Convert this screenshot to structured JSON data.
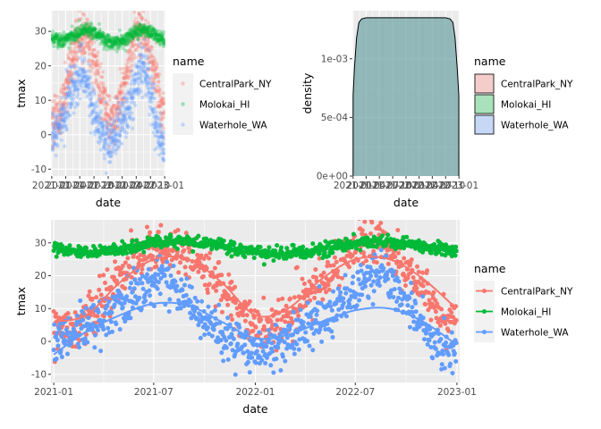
{
  "chart_data": [
    {
      "type": "scatter",
      "xlabel": "date",
      "ylabel": "tmax",
      "xlim": [
        "2020-12-27",
        "2023-01-06"
      ],
      "ylim": [
        -12,
        36
      ],
      "x_ticks": [
        {
          "date": "2021-01-01",
          "label": "2021-01"
        },
        {
          "date": "2021-04-01",
          "label": "2021-04"
        },
        {
          "date": "2021-07-01",
          "label": "2021-07"
        },
        {
          "date": "2021-10-01",
          "label": "2021-10"
        },
        {
          "date": "2022-01-01",
          "label": "2022-01"
        },
        {
          "date": "2022-04-01",
          "label": "2022-04"
        },
        {
          "date": "2022-07-01",
          "label": "2022-07"
        },
        {
          "date": "2022-10-01",
          "label": "2022-10"
        },
        {
          "date": "2023-01-01",
          "label": "2023-01"
        }
      ],
      "y_ticks": [
        -10,
        0,
        10,
        20,
        30
      ],
      "point_alpha": 0.3,
      "grid": true,
      "legend": {
        "title": "name",
        "position": "right",
        "entries": [
          {
            "label": "CentralPark_NY",
            "color": "#F8766D"
          },
          {
            "label": "Molokai_HI",
            "color": "#00BA38"
          },
          {
            "label": "Waterhole_WA",
            "color": "#619CFF"
          }
        ]
      },
      "series": [
        {
          "name": "CentralPark_NY",
          "color": "#F8766D",
          "x": [
            "2021-01-15",
            "2021-02-15",
            "2021-03-15",
            "2021-04-15",
            "2021-05-15",
            "2021-06-15",
            "2021-07-15",
            "2021-08-15",
            "2021-09-15",
            "2021-10-15",
            "2021-11-15",
            "2021-12-15",
            "2022-01-15",
            "2022-02-15",
            "2022-03-15",
            "2022-04-15",
            "2022-05-15",
            "2022-06-15",
            "2022-07-15",
            "2022-08-15",
            "2022-09-15",
            "2022-10-15",
            "2022-11-15",
            "2022-12-15"
          ],
          "y": [
            4,
            4,
            10,
            16,
            22,
            27,
            28,
            28,
            25,
            20,
            13,
            9,
            2,
            6,
            10,
            15,
            22,
            27,
            31,
            30,
            26,
            19,
            14,
            7
          ]
        },
        {
          "name": "Molokai_HI",
          "color": "#00BA38",
          "x": [
            "2021-01-15",
            "2021-02-15",
            "2021-03-15",
            "2021-04-15",
            "2021-05-15",
            "2021-06-15",
            "2021-07-15",
            "2021-08-15",
            "2021-09-15",
            "2021-10-15",
            "2021-11-15",
            "2021-12-15",
            "2022-01-15",
            "2022-02-15",
            "2022-03-15",
            "2022-04-15",
            "2022-05-15",
            "2022-06-15",
            "2022-07-15",
            "2022-08-15",
            "2022-09-15",
            "2022-10-15",
            "2022-11-15",
            "2022-12-15"
          ],
          "y": [
            28,
            27.5,
            27,
            28,
            28.5,
            29.5,
            30,
            30.5,
            30,
            29.5,
            28.5,
            27.5,
            27,
            26.5,
            27,
            27.5,
            28.5,
            29.5,
            30,
            30.5,
            30,
            29.5,
            28.5,
            27.5
          ]
        },
        {
          "name": "Waterhole_WA",
          "color": "#619CFF",
          "x": [
            "2021-01-15",
            "2021-02-15",
            "2021-03-15",
            "2021-04-15",
            "2021-05-15",
            "2021-06-15",
            "2021-07-15",
            "2021-08-15",
            "2021-09-15",
            "2021-10-15",
            "2021-11-15",
            "2021-12-15",
            "2022-01-15",
            "2022-02-15",
            "2022-03-15",
            "2022-04-15",
            "2022-05-15",
            "2022-06-15",
            "2022-07-15",
            "2022-08-15",
            "2022-09-15",
            "2022-10-15",
            "2022-11-15",
            "2022-12-15"
          ],
          "y": [
            0,
            3,
            5,
            8,
            13,
            16,
            18,
            16,
            10,
            5,
            1,
            -2,
            -3,
            0,
            2,
            5,
            8,
            13,
            17,
            21,
            16,
            7,
            1,
            -3
          ]
        }
      ]
    },
    {
      "type": "area",
      "xlabel": "date",
      "ylabel": "density",
      "xlim": [
        "2020-12-27",
        "2023-01-06"
      ],
      "ylim": [
        0,
        0.00141
      ],
      "x_ticks": [
        {
          "date": "2021-01-01",
          "label": "2021-01"
        },
        {
          "date": "2021-04-01",
          "label": "2021-04"
        },
        {
          "date": "2021-07-01",
          "label": "2021-07"
        },
        {
          "date": "2021-10-01",
          "label": "2021-10"
        },
        {
          "date": "2022-01-01",
          "label": "2022-01"
        },
        {
          "date": "2022-04-01",
          "label": "2022-04"
        },
        {
          "date": "2022-07-01",
          "label": "2022-07"
        },
        {
          "date": "2022-10-01",
          "label": "2022-10"
        },
        {
          "date": "2023-01-01",
          "label": "2023-01"
        }
      ],
      "y_ticks": [
        {
          "value": 0,
          "label": "0e+00"
        },
        {
          "value": 0.0005,
          "label": "5e-04"
        },
        {
          "value": 0.001,
          "label": "1e-03"
        }
      ],
      "fill_alpha": 0.3,
      "grid": true,
      "legend": {
        "title": "name",
        "position": "right",
        "entries": [
          {
            "label": "CentralPark_NY",
            "color": "#F8766D"
          },
          {
            "label": "Molokai_HI",
            "color": "#00BA38"
          },
          {
            "label": "Waterhole_WA",
            "color": "#619CFF"
          }
        ]
      },
      "series": [
        {
          "name": "density",
          "x": [
            "2021-01-01",
            "2021-01-10",
            "2021-01-25",
            "2021-02-10",
            "2021-03-01",
            "2021-04-01",
            "2022-10-01",
            "2022-11-01",
            "2022-11-20",
            "2022-12-05",
            "2022-12-20",
            "2022-12-31"
          ],
          "y": [
            0.00069,
            0.00092,
            0.00118,
            0.00131,
            0.00134,
            0.00135,
            0.00135,
            0.00134,
            0.00131,
            0.00118,
            0.00092,
            0.00069
          ]
        }
      ]
    },
    {
      "type": "scatter",
      "xlabel": "date",
      "ylabel": "tmax",
      "xlim": [
        "2020-12-27",
        "2023-01-06"
      ],
      "ylim": [
        -12.5,
        37
      ],
      "x_ticks": [
        {
          "date": "2021-01-01",
          "label": "2021-01"
        },
        {
          "date": "2021-07-01",
          "label": "2021-07"
        },
        {
          "date": "2022-01-01",
          "label": "2022-01"
        },
        {
          "date": "2022-07-01",
          "label": "2022-07"
        },
        {
          "date": "2023-01-01",
          "label": "2023-01"
        }
      ],
      "y_ticks": [
        -10,
        0,
        10,
        20,
        30
      ],
      "grid": true,
      "legend": {
        "title": "name",
        "position": "right",
        "entries": [
          {
            "label": "CentralPark_NY",
            "color": "#F8766D"
          },
          {
            "label": "Molokai_HI",
            "color": "#00BA38"
          },
          {
            "label": "Waterhole_WA",
            "color": "#619CFF"
          }
        ]
      },
      "series": [
        {
          "name": "CentralPark_NY",
          "color": "#F8766D",
          "x": [
            "2021-01-15",
            "2021-02-15",
            "2021-03-15",
            "2021-04-15",
            "2021-05-15",
            "2021-06-15",
            "2021-07-15",
            "2021-08-15",
            "2021-09-15",
            "2021-10-15",
            "2021-11-15",
            "2021-12-15",
            "2022-01-15",
            "2022-02-15",
            "2022-03-15",
            "2022-04-15",
            "2022-05-15",
            "2022-06-15",
            "2022-07-15",
            "2022-08-15",
            "2022-09-15",
            "2022-10-15",
            "2022-11-15",
            "2022-12-15"
          ],
          "y": [
            4,
            4,
            10,
            16,
            22,
            27,
            28,
            28,
            25,
            20,
            13,
            9,
            2,
            6,
            10,
            15,
            22,
            27,
            31,
            30,
            26,
            19,
            14,
            7
          ],
          "smooth_x": [
            "2021-01-01",
            "2021-03-01",
            "2021-05-01",
            "2021-07-01",
            "2021-09-01",
            "2021-11-01",
            "2022-01-01",
            "2022-03-01",
            "2022-05-01",
            "2022-07-01",
            "2022-09-01",
            "2022-11-01",
            "2022-12-31"
          ],
          "smooth_y": [
            6,
            8,
            18,
            25,
            25,
            18,
            8,
            10,
            19,
            25,
            25,
            19,
            10
          ]
        },
        {
          "name": "Molokai_HI",
          "color": "#00BA38",
          "x": [
            "2021-01-15",
            "2021-02-15",
            "2021-03-15",
            "2021-04-15",
            "2021-05-15",
            "2021-06-15",
            "2021-07-15",
            "2021-08-15",
            "2021-09-15",
            "2021-10-15",
            "2021-11-15",
            "2021-12-15",
            "2022-01-15",
            "2022-02-15",
            "2022-03-15",
            "2022-04-15",
            "2022-05-15",
            "2022-06-15",
            "2022-07-15",
            "2022-08-15",
            "2022-09-15",
            "2022-10-15",
            "2022-11-15",
            "2022-12-15"
          ],
          "y": [
            28,
            27.5,
            27,
            28,
            28.5,
            29.5,
            30,
            30.5,
            30,
            29.5,
            28.5,
            27.5,
            27,
            26.5,
            27,
            27.5,
            28.5,
            29.5,
            30,
            30.5,
            30,
            29.5,
            28.5,
            27.5
          ],
          "smooth_x": [
            "2021-01-01",
            "2021-03-01",
            "2021-05-01",
            "2021-07-01",
            "2021-09-01",
            "2021-11-01",
            "2022-01-01",
            "2022-03-01",
            "2022-05-01",
            "2022-07-01",
            "2022-09-01",
            "2022-11-01",
            "2022-12-31"
          ],
          "smooth_y": [
            28,
            27.5,
            28.5,
            30,
            30,
            28.5,
            27,
            27,
            28.5,
            30,
            30,
            28.5,
            27.5
          ]
        },
        {
          "name": "Waterhole_WA",
          "color": "#619CFF",
          "x": [
            "2021-01-15",
            "2021-02-15",
            "2021-03-15",
            "2021-04-15",
            "2021-05-15",
            "2021-06-15",
            "2021-07-15",
            "2021-08-15",
            "2021-09-15",
            "2021-10-15",
            "2021-11-15",
            "2021-12-15",
            "2022-01-15",
            "2022-02-15",
            "2022-03-15",
            "2022-04-15",
            "2022-05-15",
            "2022-06-15",
            "2022-07-15",
            "2022-08-15",
            "2022-09-15",
            "2022-10-15",
            "2022-11-15",
            "2022-12-15"
          ],
          "y": [
            0,
            3,
            5,
            8,
            13,
            16,
            18,
            16,
            10,
            5,
            1,
            -2,
            -3,
            0,
            2,
            5,
            8,
            13,
            17,
            21,
            16,
            7,
            1,
            -3
          ],
          "smooth_x": [
            "2021-01-01",
            "2021-03-01",
            "2021-05-01",
            "2021-07-01",
            "2021-09-01",
            "2021-11-01",
            "2022-01-01",
            "2022-03-01",
            "2022-05-01",
            "2022-07-01",
            "2022-09-01",
            "2022-11-01",
            "2022-12-31"
          ],
          "smooth_y": [
            -4,
            3,
            8,
            11.5,
            11,
            6,
            1,
            2,
            6,
            9.5,
            10,
            6,
            -1
          ]
        }
      ]
    }
  ]
}
